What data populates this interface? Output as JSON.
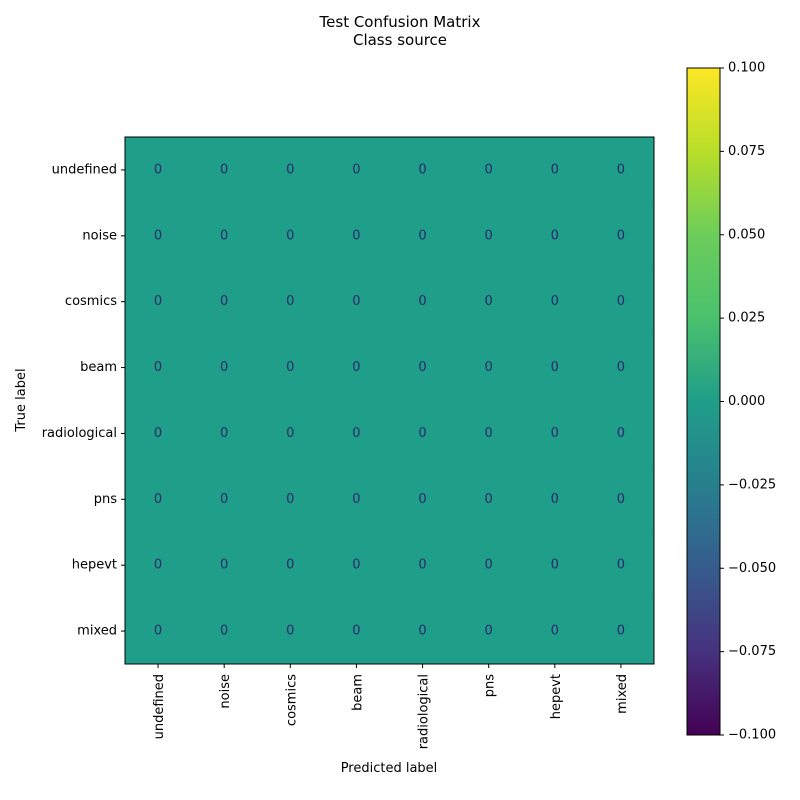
{
  "chart_data": {
    "type": "heatmap",
    "title": "Test Confusion Matrix",
    "subtitle": "Class source",
    "xlabel": "Predicted label",
    "ylabel": "True label",
    "x_categories": [
      "undefined",
      "noise",
      "cosmics",
      "beam",
      "radiological",
      "pns",
      "hepevt",
      "mixed"
    ],
    "y_categories": [
      "undefined",
      "noise",
      "cosmics",
      "beam",
      "radiological",
      "pns",
      "hepevt",
      "mixed"
    ],
    "values": [
      [
        0,
        0,
        0,
        0,
        0,
        0,
        0,
        0
      ],
      [
        0,
        0,
        0,
        0,
        0,
        0,
        0,
        0
      ],
      [
        0,
        0,
        0,
        0,
        0,
        0,
        0,
        0
      ],
      [
        0,
        0,
        0,
        0,
        0,
        0,
        0,
        0
      ],
      [
        0,
        0,
        0,
        0,
        0,
        0,
        0,
        0
      ],
      [
        0,
        0,
        0,
        0,
        0,
        0,
        0,
        0
      ],
      [
        0,
        0,
        0,
        0,
        0,
        0,
        0,
        0
      ],
      [
        0,
        0,
        0,
        0,
        0,
        0,
        0,
        0
      ]
    ],
    "colormap": "viridis",
    "color_range": [
      -0.1,
      0.1
    ],
    "colorbar_ticks": [
      -0.1,
      -0.075,
      -0.05,
      -0.025,
      0.0,
      0.025,
      0.05,
      0.075,
      0.1
    ],
    "colorbar_tick_labels": [
      "−0.100",
      "−0.075",
      "−0.050",
      "−0.025",
      "0.000",
      "0.025",
      "0.050",
      "0.075",
      "0.100"
    ],
    "cell_text_color": "#2a2a6a",
    "grid": false
  }
}
